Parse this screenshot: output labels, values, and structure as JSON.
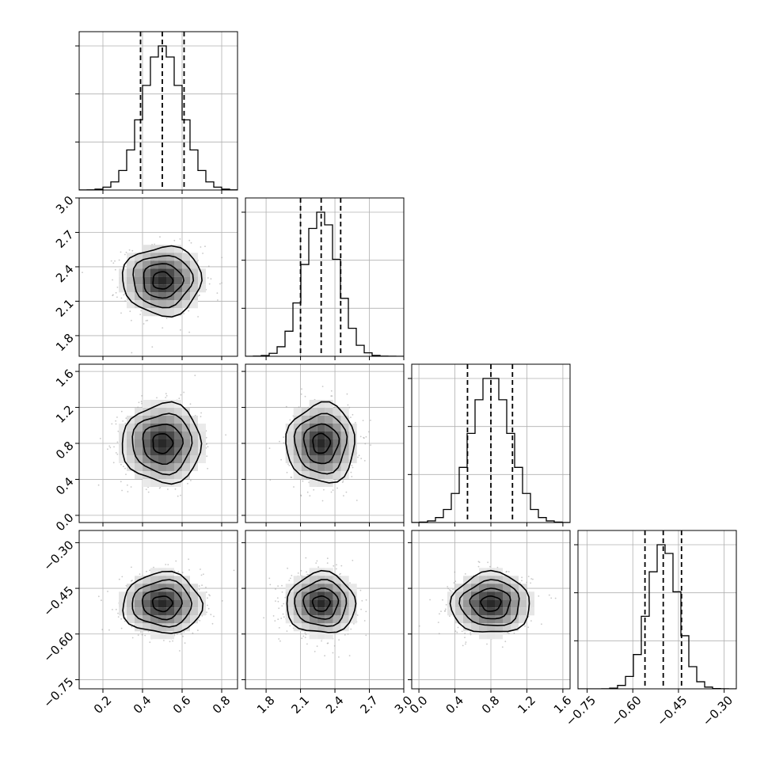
{
  "chart_data": {
    "type": "corner",
    "parameters": [
      {
        "index": 0,
        "mean": 0.5,
        "std": 0.1,
        "range": [
          0.08,
          0.88
        ],
        "ticks": [
          0.2,
          0.4,
          0.6,
          0.8
        ],
        "tick_labels": [
          "0.2",
          "0.4",
          "0.6",
          "0.8"
        ],
        "quantiles": [
          0.39,
          0.5,
          0.61
        ]
      },
      {
        "index": 1,
        "mean": 2.28,
        "std": 0.15,
        "range": [
          1.62,
          3.0
        ],
        "ticks": [
          1.8,
          2.1,
          2.4,
          2.7,
          3.0
        ],
        "tick_labels": [
          "1.8",
          "2.1",
          "2.4",
          "2.7",
          "3.0"
        ],
        "quantiles": [
          2.1,
          2.28,
          2.45
        ]
      },
      {
        "index": 2,
        "mean": 0.8,
        "std": 0.22,
        "range": [
          -0.08,
          1.68
        ],
        "ticks": [
          0.0,
          0.4,
          0.8,
          1.2,
          1.6
        ],
        "tick_labels": [
          "0.0",
          "0.4",
          "0.8",
          "1.2",
          "1.6"
        ],
        "quantiles": [
          0.54,
          0.8,
          1.04
        ]
      },
      {
        "index": 3,
        "mean": -0.5,
        "std": 0.05,
        "range": [
          -0.78,
          -0.26
        ],
        "ticks": [
          -0.75,
          -0.6,
          -0.45,
          -0.3
        ],
        "tick_labels": [
          "−0.75",
          "−0.60",
          "−0.45",
          "−0.30"
        ],
        "quantiles": [
          -0.56,
          -0.5,
          -0.44
        ]
      }
    ],
    "grid": true,
    "title": "",
    "xlabel": "",
    "ylabel": ""
  }
}
